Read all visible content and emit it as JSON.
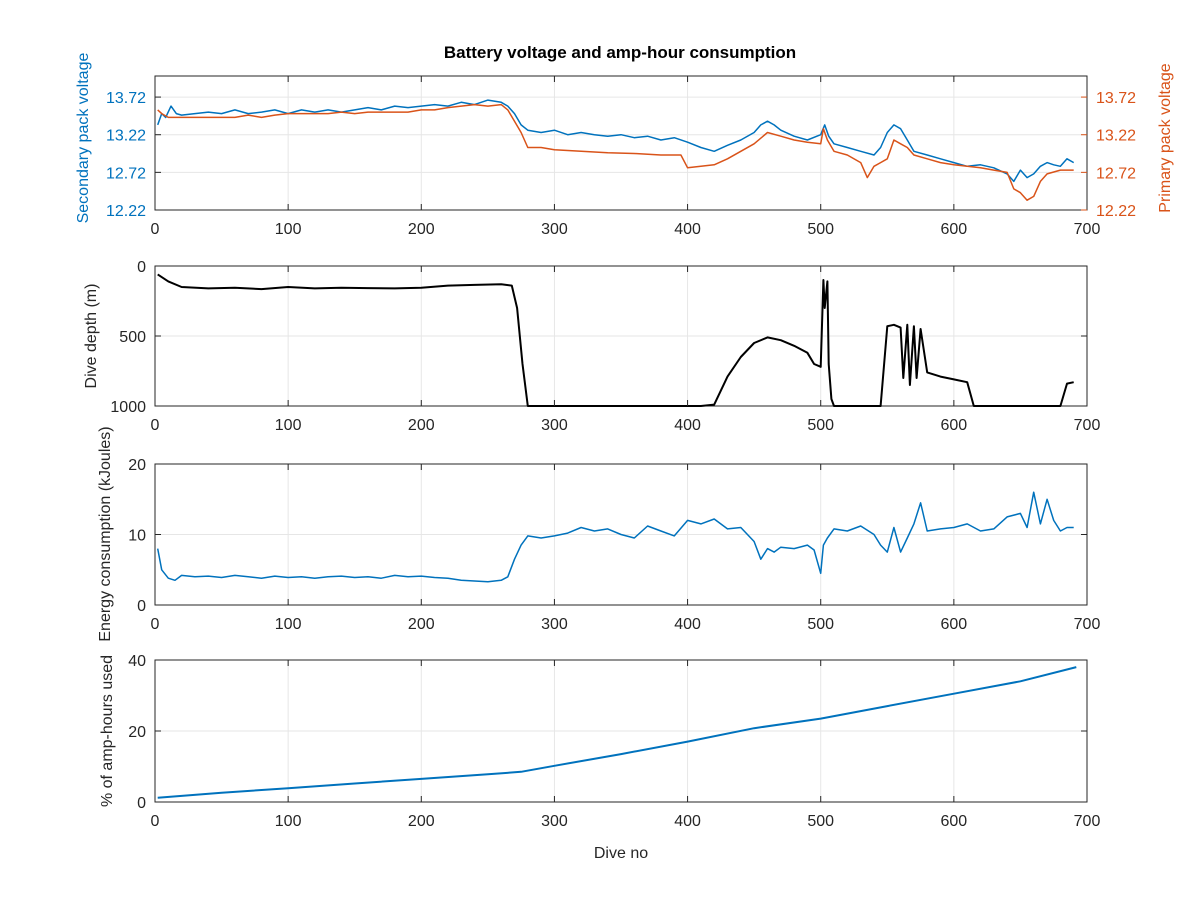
{
  "chart_data": [
    {
      "type": "line",
      "title": "Battery voltage and amp-hour consumption",
      "xlabel": "",
      "ylabel": "Secondary pack voltage",
      "ylabel_right": "Primary pack voltage",
      "xlim": [
        0,
        700
      ],
      "ylim": [
        12.22,
        14.0
      ],
      "ylim_right": [
        12.22,
        14.0
      ],
      "xticks": [
        0,
        100,
        200,
        300,
        400,
        500,
        600,
        700
      ],
      "yticks": [
        "12.22",
        "12.72",
        "13.22",
        "13.72"
      ],
      "yticks_right": [
        "12.22",
        "12.72",
        "13.22",
        "13.72"
      ],
      "grid": true,
      "series": [
        {
          "axis": "left",
          "color": "#0072BD",
          "x": [
            2,
            5,
            8,
            12,
            16,
            20,
            30,
            40,
            50,
            60,
            70,
            80,
            90,
            100,
            110,
            120,
            130,
            140,
            150,
            160,
            170,
            180,
            190,
            200,
            210,
            220,
            230,
            240,
            250,
            260,
            265,
            270,
            275,
            280,
            290,
            300,
            310,
            320,
            330,
            340,
            350,
            360,
            370,
            380,
            390,
            400,
            410,
            420,
            430,
            440,
            450,
            455,
            460,
            465,
            470,
            480,
            490,
            500,
            503,
            506,
            510,
            520,
            530,
            540,
            545,
            550,
            555,
            560,
            565,
            570,
            580,
            590,
            600,
            610,
            620,
            630,
            640,
            645,
            650,
            655,
            660,
            665,
            670,
            675,
            680,
            685,
            690
          ],
          "y": [
            13.35,
            13.5,
            13.45,
            13.6,
            13.5,
            13.48,
            13.5,
            13.52,
            13.5,
            13.55,
            13.5,
            13.52,
            13.55,
            13.5,
            13.55,
            13.52,
            13.55,
            13.52,
            13.55,
            13.58,
            13.55,
            13.6,
            13.58,
            13.6,
            13.62,
            13.6,
            13.65,
            13.62,
            13.68,
            13.65,
            13.6,
            13.5,
            13.35,
            13.28,
            13.25,
            13.28,
            13.22,
            13.25,
            13.22,
            13.2,
            13.22,
            13.18,
            13.2,
            13.15,
            13.18,
            13.12,
            13.05,
            13.0,
            13.08,
            13.15,
            13.25,
            13.35,
            13.4,
            13.35,
            13.28,
            13.2,
            13.15,
            13.22,
            13.35,
            13.2,
            13.1,
            13.05,
            13.0,
            12.95,
            13.05,
            13.25,
            13.35,
            13.3,
            13.15,
            13.0,
            12.95,
            12.9,
            12.85,
            12.8,
            12.82,
            12.78,
            12.7,
            12.6,
            12.75,
            12.65,
            12.7,
            12.8,
            12.85,
            12.82,
            12.8,
            12.9,
            12.85
          ]
        },
        {
          "axis": "right",
          "color": "#D95319",
          "x": [
            2,
            5,
            10,
            20,
            30,
            40,
            50,
            60,
            70,
            80,
            90,
            100,
            110,
            120,
            130,
            140,
            150,
            160,
            170,
            180,
            190,
            200,
            210,
            220,
            230,
            240,
            250,
            260,
            265,
            270,
            275,
            280,
            290,
            300,
            320,
            340,
            360,
            380,
            395,
            400,
            410,
            420,
            430,
            440,
            450,
            460,
            470,
            480,
            490,
            500,
            502,
            505,
            510,
            520,
            530,
            535,
            540,
            545,
            550,
            555,
            560,
            565,
            570,
            580,
            590,
            600,
            610,
            620,
            630,
            640,
            645,
            650,
            655,
            660,
            665,
            670,
            680,
            690
          ],
          "y": [
            13.55,
            13.5,
            13.45,
            13.45,
            13.45,
            13.45,
            13.45,
            13.45,
            13.48,
            13.45,
            13.48,
            13.5,
            13.5,
            13.5,
            13.5,
            13.52,
            13.5,
            13.52,
            13.52,
            13.52,
            13.52,
            13.55,
            13.55,
            13.58,
            13.6,
            13.62,
            13.6,
            13.62,
            13.55,
            13.4,
            13.25,
            13.05,
            13.05,
            13.02,
            13.0,
            12.98,
            12.97,
            12.95,
            12.95,
            12.78,
            12.8,
            12.82,
            12.9,
            13.0,
            13.1,
            13.25,
            13.2,
            13.15,
            13.12,
            13.1,
            13.3,
            13.15,
            13.0,
            12.95,
            12.85,
            12.65,
            12.8,
            12.85,
            12.9,
            13.15,
            13.1,
            13.05,
            12.95,
            12.9,
            12.85,
            12.82,
            12.8,
            12.78,
            12.75,
            12.72,
            12.5,
            12.45,
            12.35,
            12.4,
            12.6,
            12.7,
            12.75,
            12.75
          ]
        }
      ]
    },
    {
      "type": "line",
      "xlabel": "",
      "ylabel": "Dive depth (m)",
      "xlim": [
        0,
        700
      ],
      "ylim": [
        0,
        1000
      ],
      "y_reversed": true,
      "xticks": [
        0,
        100,
        200,
        300,
        400,
        500,
        600,
        700
      ],
      "yticks": [
        "0",
        "500",
        "1000"
      ],
      "grid": true,
      "series": [
        {
          "color": "#000000",
          "x": [
            2,
            10,
            20,
            40,
            60,
            80,
            100,
            120,
            140,
            160,
            180,
            200,
            220,
            240,
            260,
            268,
            272,
            276,
            280,
            300,
            350,
            400,
            410,
            420,
            430,
            440,
            450,
            460,
            470,
            480,
            490,
            495,
            500,
            502,
            503,
            505,
            506,
            508,
            510,
            515,
            540,
            545,
            550,
            555,
            560,
            562,
            565,
            567,
            570,
            572,
            575,
            580,
            590,
            600,
            610,
            615,
            640,
            660,
            680,
            685,
            690
          ],
          "y": [
            60,
            110,
            150,
            160,
            155,
            165,
            150,
            160,
            155,
            158,
            160,
            155,
            140,
            135,
            130,
            140,
            300,
            700,
            1000,
            1000,
            1000,
            1000,
            1000,
            990,
            790,
            650,
            550,
            510,
            530,
            570,
            620,
            700,
            720,
            100,
            300,
            110,
            700,
            950,
            1000,
            1000,
            1000,
            1000,
            430,
            420,
            440,
            800,
            420,
            850,
            430,
            800,
            450,
            760,
            790,
            810,
            830,
            1000,
            1000,
            1000,
            1000,
            840,
            830
          ]
        }
      ]
    },
    {
      "type": "line",
      "xlabel": "",
      "ylabel": "Energy consumption (kJoules)",
      "xlim": [
        0,
        700
      ],
      "ylim": [
        0,
        20
      ],
      "xticks": [
        0,
        100,
        200,
        300,
        400,
        500,
        600,
        700
      ],
      "yticks": [
        "0",
        "10",
        "20"
      ],
      "grid": true,
      "series": [
        {
          "color": "#0072BD",
          "x": [
            2,
            5,
            10,
            15,
            20,
            30,
            40,
            50,
            60,
            70,
            80,
            90,
            100,
            110,
            120,
            130,
            140,
            150,
            160,
            170,
            180,
            190,
            200,
            210,
            220,
            230,
            240,
            250,
            260,
            265,
            270,
            275,
            280,
            290,
            300,
            310,
            320,
            330,
            340,
            350,
            360,
            370,
            380,
            390,
            400,
            410,
            420,
            430,
            440,
            450,
            455,
            460,
            465,
            470,
            480,
            490,
            495,
            500,
            502,
            505,
            510,
            520,
            530,
            540,
            545,
            550,
            555,
            560,
            565,
            570,
            575,
            580,
            590,
            600,
            610,
            620,
            630,
            640,
            650,
            655,
            660,
            665,
            670,
            675,
            680,
            685,
            690
          ],
          "y": [
            8,
            5,
            3.8,
            3.5,
            4.2,
            4.0,
            4.1,
            3.9,
            4.2,
            4.0,
            3.8,
            4.1,
            3.9,
            4.0,
            3.8,
            4.0,
            4.1,
            3.9,
            4.0,
            3.8,
            4.2,
            4.0,
            4.1,
            3.9,
            3.8,
            3.5,
            3.4,
            3.3,
            3.5,
            4.0,
            6.5,
            8.5,
            9.8,
            9.5,
            9.8,
            10.2,
            11.0,
            10.5,
            10.8,
            10.0,
            9.5,
            11.2,
            10.5,
            9.8,
            12.0,
            11.5,
            12.2,
            10.8,
            11.0,
            9.0,
            6.5,
            8.0,
            7.5,
            8.2,
            8.0,
            8.5,
            7.8,
            4.5,
            8.5,
            9.5,
            10.8,
            10.5,
            11.2,
            10.0,
            8.5,
            7.5,
            11.0,
            7.5,
            9.5,
            11.5,
            14.5,
            10.5,
            10.8,
            11.0,
            11.5,
            10.5,
            10.8,
            12.5,
            13.0,
            11.0,
            16.0,
            11.5,
            15.0,
            12.0,
            10.5,
            11.0,
            11.0
          ]
        }
      ]
    },
    {
      "type": "line",
      "xlabel": "Dive no",
      "ylabel": "% of amp-hours used",
      "xlim": [
        0,
        700
      ],
      "ylim": [
        0,
        40
      ],
      "xticks": [
        0,
        100,
        200,
        300,
        400,
        500,
        600,
        700
      ],
      "yticks": [
        "0",
        "20",
        "40"
      ],
      "grid": true,
      "series": [
        {
          "color": "#0072BD",
          "x": [
            2,
            50,
            100,
            150,
            200,
            250,
            275,
            300,
            350,
            400,
            450,
            500,
            550,
            600,
            650,
            692
          ],
          "y": [
            1.2,
            2.6,
            3.9,
            5.2,
            6.5,
            7.8,
            8.5,
            10.2,
            13.5,
            17.0,
            20.8,
            23.5,
            27.0,
            30.5,
            34.0,
            38.0
          ]
        }
      ]
    }
  ]
}
